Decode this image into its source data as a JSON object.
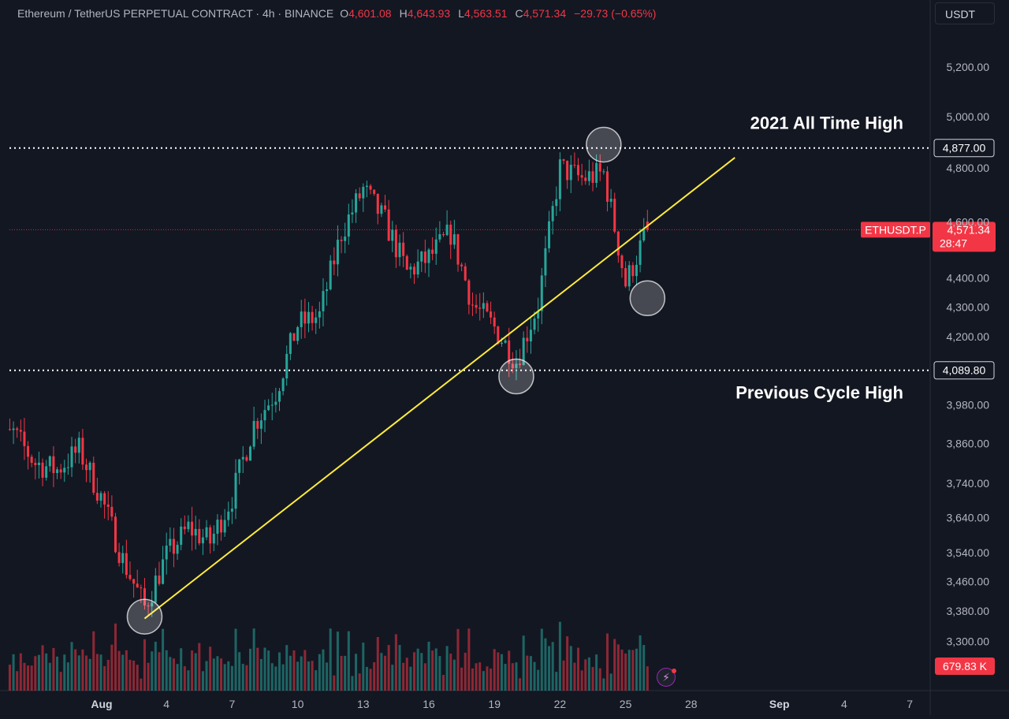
{
  "header": {
    "symbol": "Ethereum / TetherUS PERPETUAL CONTRACT · 4h · BINANCE",
    "open_label": "O",
    "open": "4,601.08",
    "high_label": "H",
    "high": "4,643.93",
    "low_label": "L",
    "low": "4,563.51",
    "close_label": "C",
    "close": "4,571.34",
    "change": "−29.73 (−0.65%)"
  },
  "currency_button": "USDT",
  "colors": {
    "background": "#131722",
    "up": "#26a69a",
    "down": "#f23645",
    "trendline": "#ffeb3b",
    "levels": "#ffffff",
    "price_line": "#f23645",
    "axis_text": "#b2b5be"
  },
  "icons": {
    "alert_button": "lightning-bolt-icon"
  },
  "chart_data": {
    "type": "candlestick",
    "title": "Ethereum / TetherUS PERPETUAL CONTRACT · 4h · BINANCE",
    "y_axis": {
      "scale": "log",
      "range": [
        3240,
        5400
      ],
      "ticks": [
        "5,200.00",
        "5,000.00",
        "4,800.00",
        "4,600.00",
        "4,400.00",
        "4,300.00",
        "4,200.00",
        "3,980.00",
        "3,860.00",
        "3,740.00",
        "3,640.00",
        "3,540.00",
        "3,460.00",
        "3,380.00",
        "3,300.00"
      ]
    },
    "x_axis": {
      "ticks": [
        {
          "label": "Aug",
          "day": 1
        },
        {
          "label": "4",
          "day": 4
        },
        {
          "label": "7",
          "day": 7
        },
        {
          "label": "10",
          "day": 10
        },
        {
          "label": "13",
          "day": 13
        },
        {
          "label": "16",
          "day": 16
        },
        {
          "label": "19",
          "day": 19
        },
        {
          "label": "22",
          "day": 22
        },
        {
          "label": "25",
          "day": 25
        },
        {
          "label": "28",
          "day": 28
        },
        {
          "label": "Sep",
          "day": 32
        },
        {
          "label": "4",
          "day": 35
        },
        {
          "label": "7",
          "day": 38
        }
      ]
    },
    "keypoints_close": [
      [
        "2025-07-27",
        3850
      ],
      [
        "2025-07-28",
        3890
      ],
      [
        "2025-07-29",
        3800
      ],
      [
        "2025-07-30",
        3780
      ],
      [
        "2025-07-31",
        3840
      ],
      [
        "2025-08-01",
        3700
      ],
      [
        "2025-08-02",
        3520
      ],
      [
        "2025-08-03",
        3390
      ],
      [
        "2025-08-04",
        3530
      ],
      [
        "2025-08-05",
        3610
      ],
      [
        "2025-08-06",
        3570
      ],
      [
        "2025-08-07",
        3700
      ],
      [
        "2025-08-08",
        3920
      ],
      [
        "2025-08-09",
        4020
      ],
      [
        "2025-08-10",
        4240
      ],
      [
        "2025-08-11",
        4270
      ],
      [
        "2025-08-12",
        4560
      ],
      [
        "2025-08-13",
        4720
      ],
      [
        "2025-08-14",
        4600
      ],
      [
        "2025-08-15",
        4420
      ],
      [
        "2025-08-16",
        4470
      ],
      [
        "2025-08-17",
        4560
      ],
      [
        "2025-08-18",
        4310
      ],
      [
        "2025-08-19",
        4230
      ],
      [
        "2025-08-20",
        4120
      ],
      [
        "2025-08-21",
        4310
      ],
      [
        "2025-08-22",
        4800
      ],
      [
        "2025-08-23",
        4760
      ],
      [
        "2025-08-24",
        4780
      ],
      [
        "2025-08-25",
        4380
      ],
      [
        "2025-08-26",
        4571.34
      ]
    ],
    "price_levels": [
      {
        "value": 4877.0,
        "label": "4,877.00",
        "annotation": "2021 All Time High",
        "style": "dotted"
      },
      {
        "value": 4089.8,
        "label": "4,089.80",
        "annotation": "Previous Cycle High",
        "style": "dotted"
      }
    ],
    "last_price": {
      "ticker": "ETHUSDT.P",
      "value": "4,571.34",
      "countdown": "28:47"
    },
    "volume_label": "679.83 K",
    "trendline": {
      "from": [
        "2025-08-03",
        3360
      ],
      "to": [
        "2025-08-30",
        4840
      ]
    },
    "highlighted_points": [
      [
        "2025-08-03",
        3365
      ],
      [
        "2025-08-20",
        4070
      ],
      [
        "2025-08-24",
        4890
      ],
      [
        "2025-08-26",
        4330
      ]
    ]
  }
}
